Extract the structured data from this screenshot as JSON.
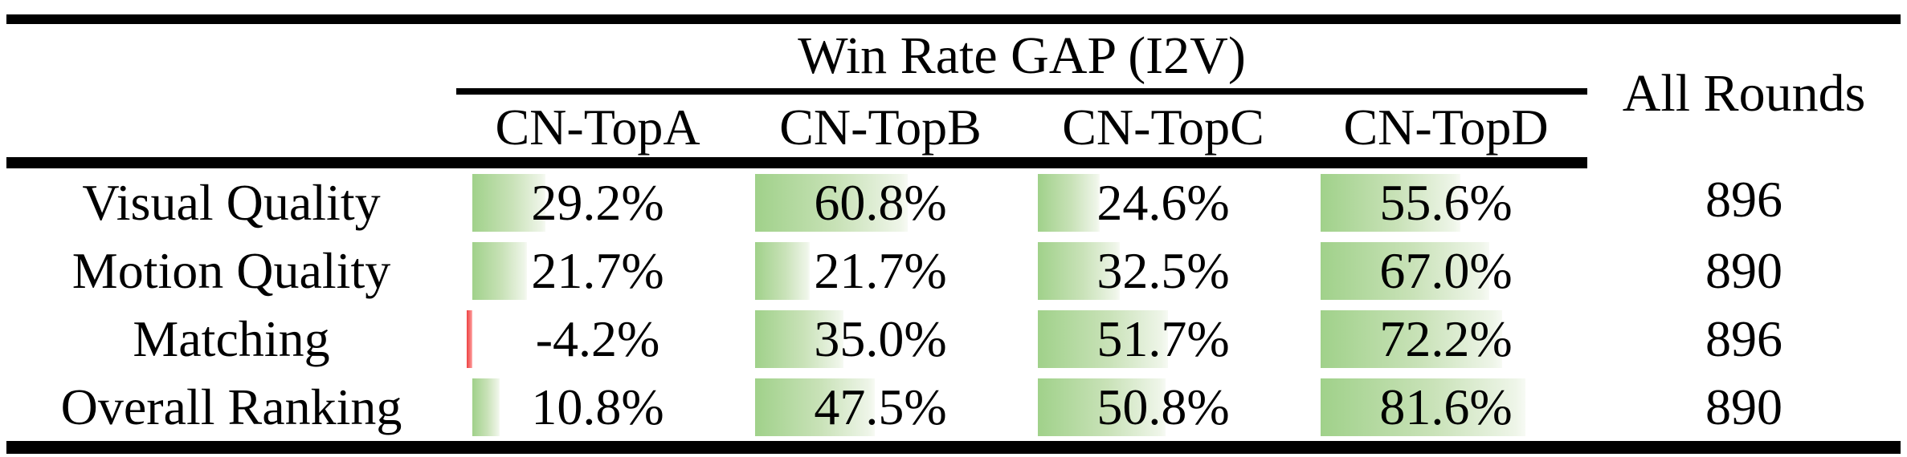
{
  "table": {
    "spanner_header": "Win Rate GAP (I2V)",
    "all_rounds_header": "All Rounds",
    "columns": [
      "CN-TopA",
      "CN-TopB",
      "CN-TopC",
      "CN-TopD"
    ],
    "rows": [
      {
        "label": "Visual Quality",
        "values": [
          29.2,
          60.8,
          24.6,
          55.6
        ],
        "all_rounds": "896"
      },
      {
        "label": "Motion Quality",
        "values": [
          21.7,
          21.7,
          32.5,
          67.0
        ],
        "all_rounds": "890"
      },
      {
        "label": "Matching",
        "values": [
          -4.2,
          35.0,
          51.7,
          72.2
        ],
        "all_rounds": "896"
      },
      {
        "label": "Overall Ranking",
        "values": [
          10.8,
          47.5,
          50.8,
          81.6
        ],
        "all_rounds": "890"
      }
    ],
    "colors": {
      "positive_bar_start": "#a0d18a",
      "positive_bar_end": "#f7faf4",
      "negative_bar_start": "#ee4343",
      "negative_bar_end": "#ffb4b4",
      "rule": "#000000",
      "text": "#000000"
    }
  }
}
